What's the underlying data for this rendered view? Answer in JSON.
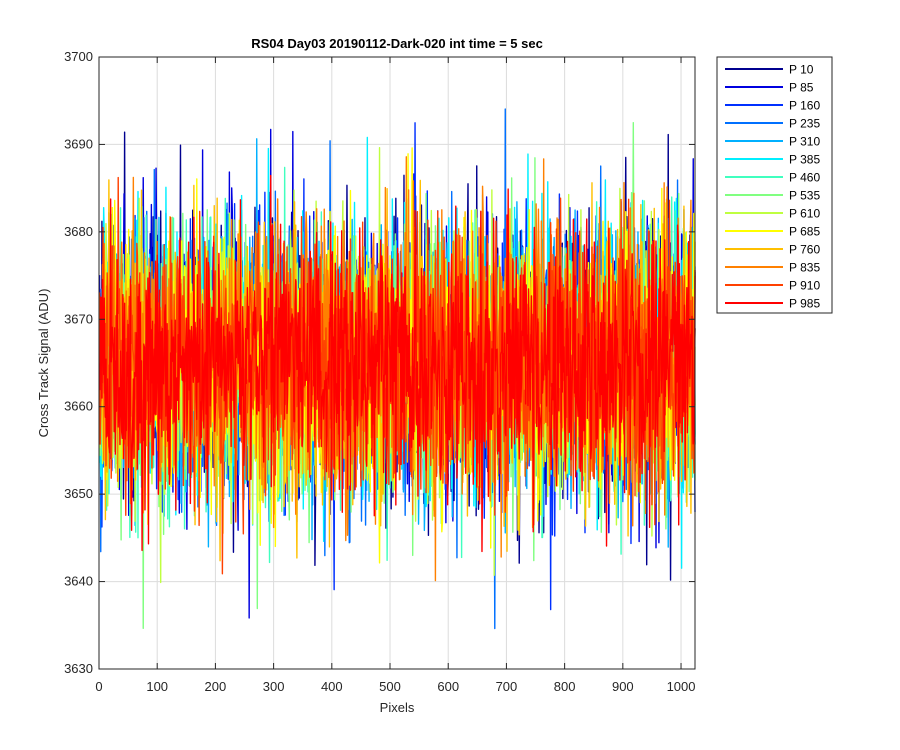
{
  "chart_data": {
    "type": "line",
    "title": "RS04 Day03 20190112-Dark-020 int time = 5 sec",
    "xlabel": "Pixels",
    "ylabel": "Cross Track Signal (ADU)",
    "xlim": [
      0,
      1024
    ],
    "ylim": [
      3630,
      3700
    ],
    "x_ticks": [
      0,
      100,
      200,
      300,
      400,
      500,
      600,
      700,
      800,
      900,
      1000
    ],
    "y_ticks": [
      3630,
      3640,
      3650,
      3660,
      3670,
      3680,
      3690,
      3700
    ],
    "grid": true,
    "legend_position": "outside-top-right",
    "noise_model": {
      "mean": 3665,
      "std": 7.5,
      "num_points_per_series": 1024,
      "note": "dense random noise around mean; individual points are not legible in the original"
    },
    "series": [
      {
        "name": "P 10",
        "color": "#00008F"
      },
      {
        "name": "P 85",
        "color": "#0000DF"
      },
      {
        "name": "P 160",
        "color": "#0030FF"
      },
      {
        "name": "P 235",
        "color": "#0070FF"
      },
      {
        "name": "P 310",
        "color": "#00B0FF"
      },
      {
        "name": "P 385",
        "color": "#00EFFF"
      },
      {
        "name": "P 460",
        "color": "#40FFBF"
      },
      {
        "name": "P 535",
        "color": "#80FF80"
      },
      {
        "name": "P 610",
        "color": "#BFFF40"
      },
      {
        "name": "P 685",
        "color": "#FFFF00"
      },
      {
        "name": "P 760",
        "color": "#FFC000"
      },
      {
        "name": "P 835",
        "color": "#FF8000"
      },
      {
        "name": "P 910",
        "color": "#FF4000"
      },
      {
        "name": "P 985",
        "color": "#FF0000"
      }
    ]
  }
}
